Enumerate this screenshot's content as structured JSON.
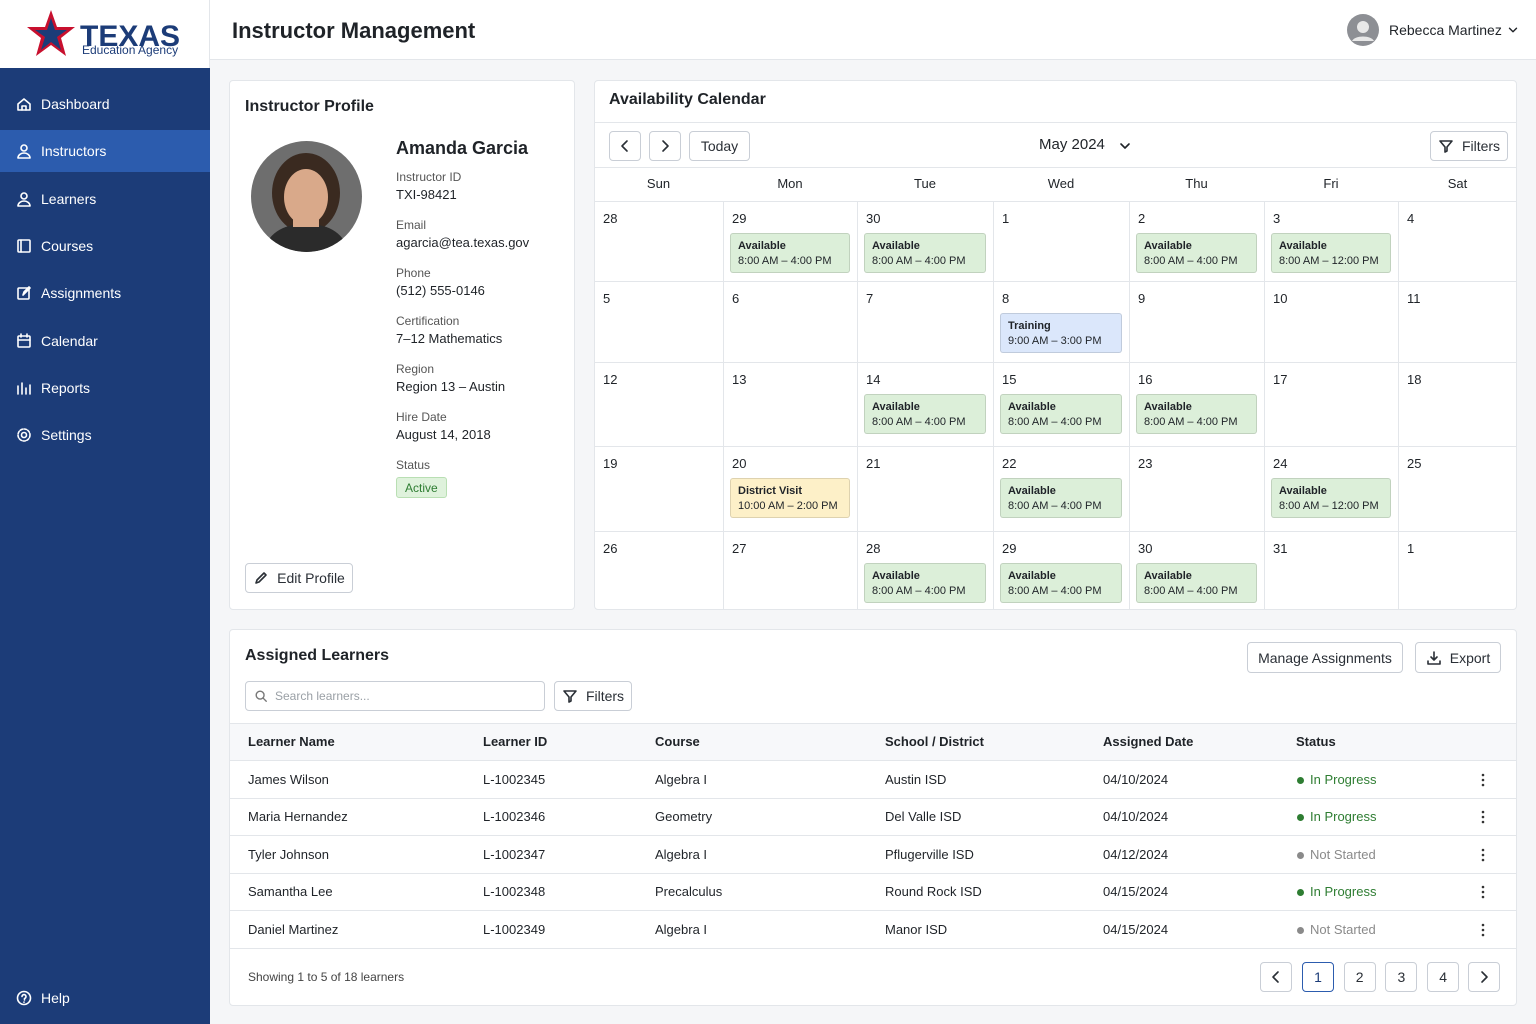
{
  "logo": {
    "name": "TEXAS",
    "sub": "Education Agency"
  },
  "header": {
    "title": "Instructor Management",
    "user": "Rebecca Martinez"
  },
  "nav": [
    {
      "label": "Dashboard"
    },
    {
      "label": "Instructors",
      "active": true
    },
    {
      "label": "Learners"
    },
    {
      "label": "Courses"
    },
    {
      "label": "Assignments"
    },
    {
      "label": "Calendar"
    },
    {
      "label": "Reports"
    },
    {
      "label": "Settings"
    }
  ],
  "help": "Help",
  "profile": {
    "title": "Instructor Profile",
    "name": "Amanda Garcia",
    "fields": [
      {
        "label": "Instructor ID",
        "value": "TXI-98421"
      },
      {
        "label": "Email",
        "value": "agarcia@tea.texas.gov"
      },
      {
        "label": "Phone",
        "value": "(512) 555-0146"
      },
      {
        "label": "Certification",
        "value": "7–12 Mathematics"
      },
      {
        "label": "Region",
        "value": "Region 13 – Austin"
      },
      {
        "label": "Hire Date",
        "value": "August 14, 2018"
      }
    ],
    "status_label": "Status",
    "status": "Active",
    "edit": "Edit Profile"
  },
  "calendar": {
    "title": "Availability Calendar",
    "today": "Today",
    "month": "May 2024",
    "filters": "Filters",
    "weekdays": [
      "Sun",
      "Mon",
      "Tue",
      "Wed",
      "Thu",
      "Fri",
      "Sat"
    ],
    "weeks": [
      [
        {
          "day": 28
        },
        {
          "day": 29,
          "event": {
            "label": "Available",
            "time": "8:00 AM – 4:00 PM",
            "color": "#dcefd9"
          }
        },
        {
          "day": 30,
          "event": {
            "label": "Available",
            "time": "8:00 AM – 4:00 PM",
            "color": "#dcefd9"
          }
        },
        {
          "day": 1
        },
        {
          "day": 2,
          "event": {
            "label": "Available",
            "time": "8:00 AM – 4:00 PM",
            "color": "#dcefd9"
          }
        },
        {
          "day": 3,
          "event": {
            "label": "Available",
            "time": "8:00 AM – 12:00 PM",
            "color": "#dcefd9"
          }
        },
        {
          "day": 4
        }
      ],
      [
        {
          "day": 5
        },
        {
          "day": 6
        },
        {
          "day": 7
        },
        {
          "day": 8,
          "event": {
            "label": "Training",
            "time": "9:00 AM – 3:00 PM",
            "color": "#dbe7fb"
          }
        },
        {
          "day": 9
        },
        {
          "day": 10
        },
        {
          "day": 11
        }
      ],
      [
        {
          "day": 12
        },
        {
          "day": 13
        },
        {
          "day": 14,
          "event": {
            "label": "Available",
            "time": "8:00 AM – 4:00 PM",
            "color": "#dcefd9"
          }
        },
        {
          "day": 15,
          "event": {
            "label": "Available",
            "time": "8:00 AM – 4:00 PM",
            "color": "#dcefd9"
          }
        },
        {
          "day": 16,
          "event": {
            "label": "Available",
            "time": "8:00 AM – 4:00 PM",
            "color": "#dcefd9"
          }
        },
        {
          "day": 17
        },
        {
          "day": 18
        }
      ],
      [
        {
          "day": 19
        },
        {
          "day": 20,
          "event": {
            "label": "District Visit",
            "time": "10:00 AM – 2:00 PM",
            "color": "#fdf0c8"
          }
        },
        {
          "day": 21
        },
        {
          "day": 22,
          "event": {
            "label": "Available",
            "time": "8:00 AM – 4:00 PM",
            "color": "#dcefd9"
          }
        },
        {
          "day": 23
        },
        {
          "day": 24,
          "event": {
            "label": "Available",
            "time": "8:00 AM – 12:00 PM",
            "color": "#dcefd9"
          }
        },
        {
          "day": 25
        }
      ],
      [
        {
          "day": 26
        },
        {
          "day": 27
        },
        {
          "day": 28,
          "event": {
            "label": "Available",
            "time": "8:00 AM – 4:00 PM",
            "color": "#dcefd9"
          }
        },
        {
          "day": 29,
          "event": {
            "label": "Available",
            "time": "8:00 AM – 4:00 PM",
            "color": "#dcefd9"
          }
        },
        {
          "day": 30,
          "event": {
            "label": "Available",
            "time": "8:00 AM – 4:00 PM",
            "color": "#dcefd9"
          }
        },
        {
          "day": 31
        },
        {
          "day": 1
        }
      ]
    ]
  },
  "learners": {
    "title": "Assigned Learners",
    "manage": "Manage Assignments",
    "export": "Export",
    "search": "Search learners...",
    "filters": "Filters",
    "columns": [
      "Learner Name",
      "Learner ID",
      "Course",
      "School / District",
      "Assigned Date",
      "Status"
    ],
    "rows": [
      {
        "cells": [
          "James Wilson",
          "L-1002345",
          "Algebra I",
          "Austin ISD",
          "04/10/2024",
          "In Progress"
        ],
        "color": "#2e7d32"
      },
      {
        "cells": [
          "Maria Hernandez",
          "L-1002346",
          "Geometry",
          "Del Valle ISD",
          "04/10/2024",
          "In Progress"
        ],
        "color": "#2e7d32"
      },
      {
        "cells": [
          "Tyler Johnson",
          "L-1002347",
          "Algebra I",
          "Pflugerville ISD",
          "04/12/2024",
          "Not Started"
        ],
        "color": "#8a8a8a"
      },
      {
        "cells": [
          "Samantha Lee",
          "L-1002348",
          "Precalculus",
          "Round Rock ISD",
          "04/15/2024",
          "In Progress"
        ],
        "color": "#2e7d32"
      },
      {
        "cells": [
          "Daniel Martinez",
          "L-1002349",
          "Algebra I",
          "Manor ISD",
          "04/15/2024",
          "Not Started"
        ],
        "color": "#8a8a8a"
      }
    ],
    "footer": "Showing 1 to 5 of 18 learners",
    "pages": [
      1,
      2,
      3,
      4
    ],
    "current_page": 1
  }
}
